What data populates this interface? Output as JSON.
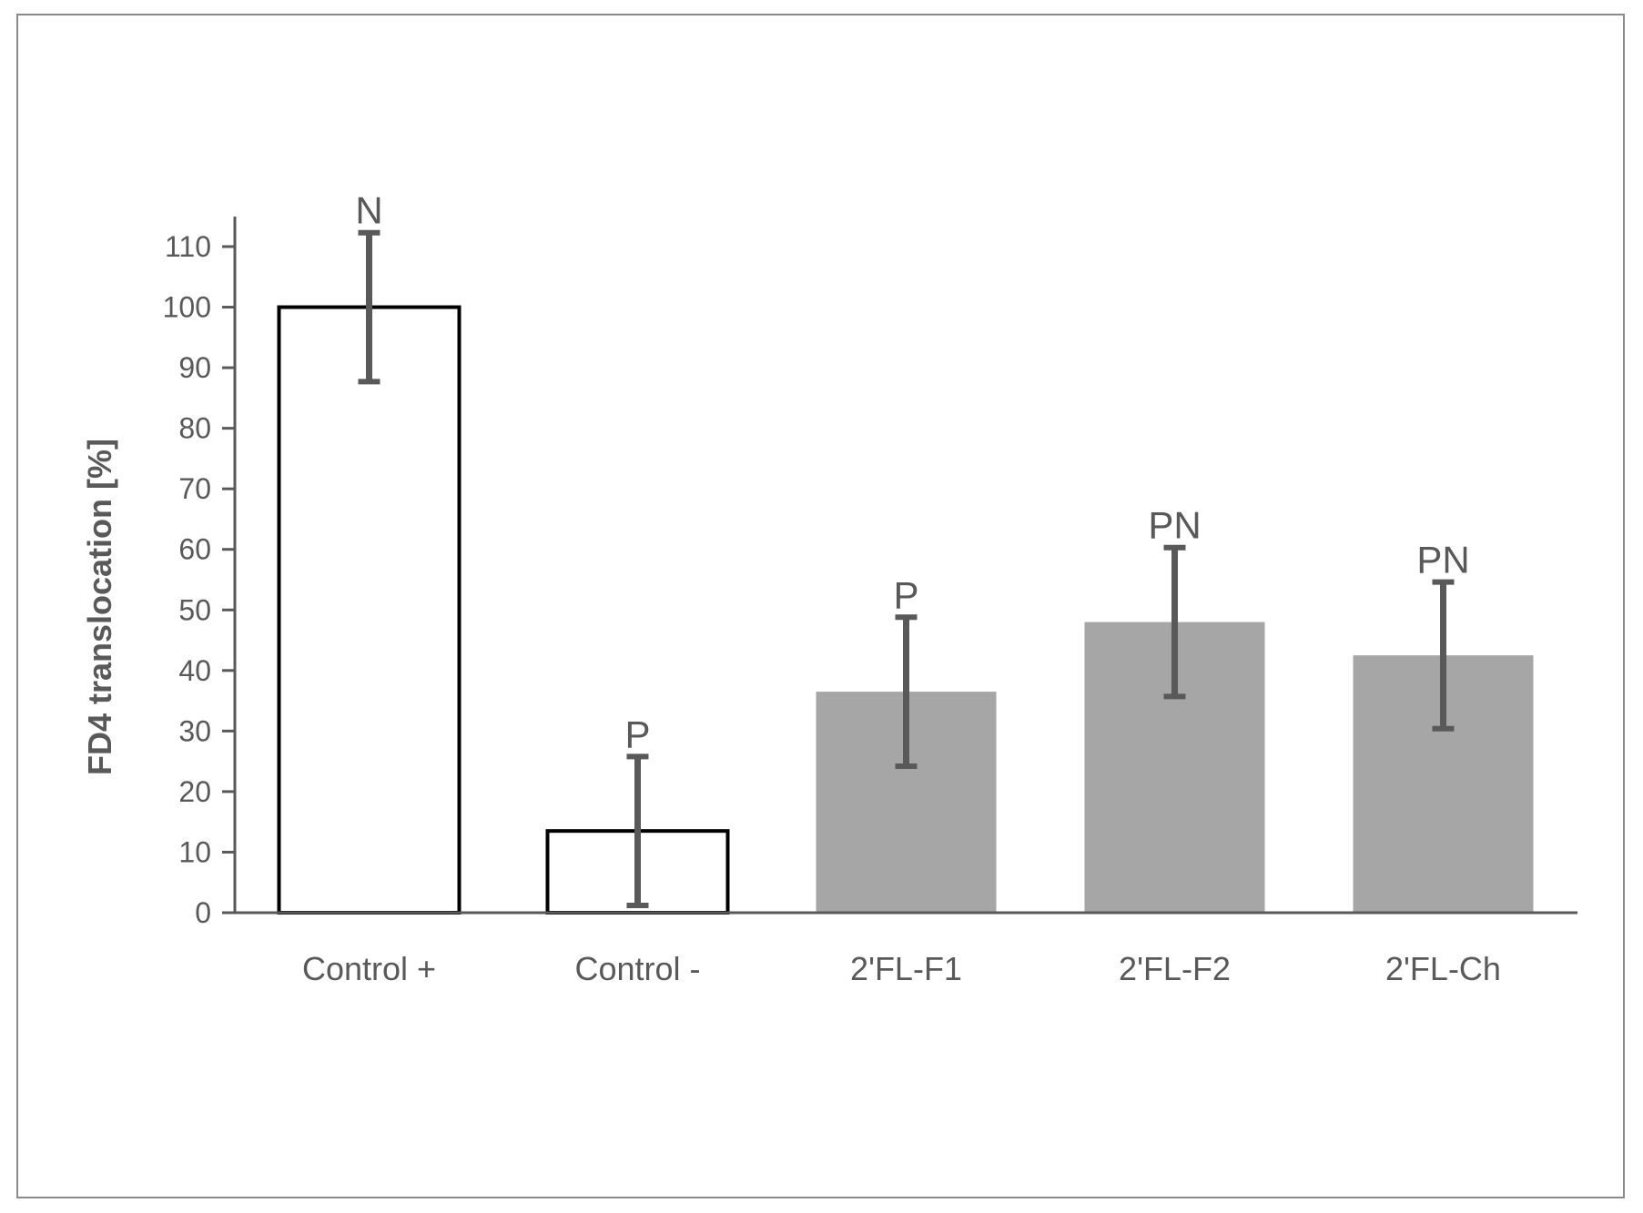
{
  "chart_data": {
    "type": "bar",
    "title": "",
    "xlabel": "",
    "ylabel": "FD4 translocation [%]",
    "ylim": [
      0,
      110
    ],
    "yticks": [
      0,
      10,
      20,
      30,
      40,
      50,
      60,
      70,
      80,
      90,
      100,
      110
    ],
    "grid": false,
    "categories": [
      "Control +",
      "Control -",
      "2'FL-F1",
      "2'FL-F2",
      "2'FL-Ch"
    ],
    "values": [
      100,
      13.5,
      36.5,
      48,
      42.5
    ],
    "error": [
      12.3,
      12.3,
      12.3,
      12.3,
      12.1
    ],
    "annotations": [
      "N",
      "P",
      "P",
      "PN",
      "PN"
    ],
    "bar_styles": [
      "outline",
      "outline",
      "filled",
      "filled",
      "filled"
    ],
    "colors": {
      "outline_fill": "#ffffff",
      "outline_stroke": "#000000",
      "filled_bar": "#a6a6a6",
      "error_bar": "#595959",
      "axis": "#595959",
      "text": "#595959",
      "frame": "#8a8a8a"
    }
  }
}
